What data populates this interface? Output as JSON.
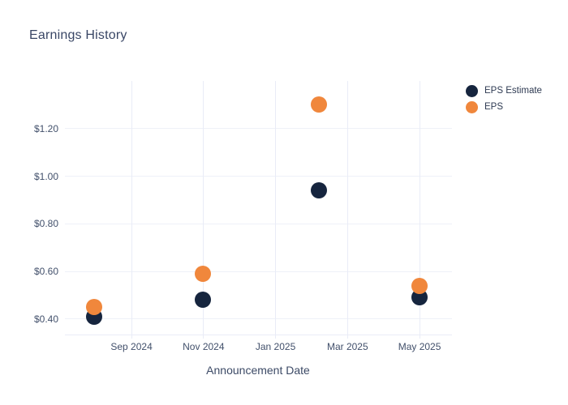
{
  "chart_data": {
    "type": "scatter",
    "title": "Earnings History",
    "xlabel": "Announcement Date",
    "ylabel": "",
    "grid": true,
    "legend_position": "top-right-outside",
    "background": "#ffffff",
    "colors": {
      "eps_estimate": "#16253e",
      "eps": "#f0873c",
      "gridline_h": "#eef1f8",
      "gridline_v": "#e9ecf7",
      "title_text": "#394665",
      "tick_text": "#42506b"
    },
    "x_axis": {
      "unit": "months_from_sep_2024",
      "range": [
        -1.85,
        8.9
      ],
      "ticks": [
        {
          "m": 0,
          "label": "Sep 2024"
        },
        {
          "m": 2,
          "label": "Nov 2024"
        },
        {
          "m": 4,
          "label": "Jan 2025"
        },
        {
          "m": 6,
          "label": "Mar 2025"
        },
        {
          "m": 8,
          "label": "May 2025"
        }
      ]
    },
    "y_axis": {
      "range": [
        0.335,
        1.4
      ],
      "ticks": [
        {
          "v": 0.4,
          "label": "$0.40"
        },
        {
          "v": 0.6,
          "label": "$0.60"
        },
        {
          "v": 0.8,
          "label": "$0.80"
        },
        {
          "v": 1.0,
          "label": "$1.00"
        },
        {
          "v": 1.2,
          "label": "$1.20"
        }
      ]
    },
    "series": [
      {
        "name": "EPS Estimate",
        "color_key": "eps_estimate",
        "points": [
          {
            "x_m": -1.03,
            "date_est": "Aug 2024",
            "y": 0.41
          },
          {
            "x_m": 1.97,
            "date_est": "Oct 2024",
            "y": 0.48
          },
          {
            "x_m": 5.2,
            "date_est": "Feb 2025",
            "y": 0.94
          },
          {
            "x_m": 8.0,
            "date_est": "May 2025",
            "y": 0.49
          }
        ]
      },
      {
        "name": "EPS",
        "color_key": "eps",
        "points": [
          {
            "x_m": -1.03,
            "date_est": "Aug 2024",
            "y": 0.45
          },
          {
            "x_m": 1.97,
            "date_est": "Oct 2024",
            "y": 0.59
          },
          {
            "x_m": 5.2,
            "date_est": "Feb 2025",
            "y": 1.3
          },
          {
            "x_m": 8.0,
            "date_est": "May 2025",
            "y": 0.54
          }
        ]
      }
    ]
  }
}
